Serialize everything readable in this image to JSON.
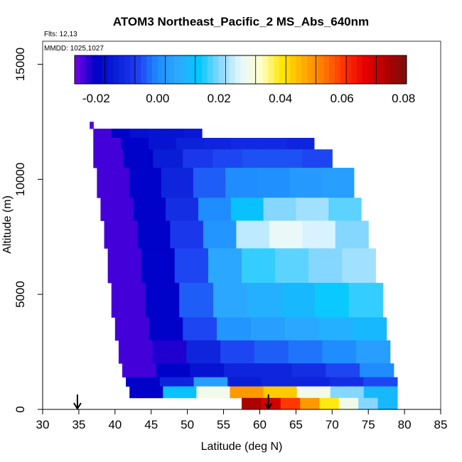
{
  "title": "ATOM3 Northeast_Pacific_2 MS_Abs_640nm",
  "flights_label": "Flts: 12,13",
  "mmdd_label": "MMDD: 1025,1027",
  "chart_data": {
    "type": "heatmap",
    "title": "ATOM3 Northeast_Pacific_2 MS_Abs_640nm",
    "xlabel": "Latitude (deg N)",
    "ylabel": "Altitude (m)",
    "xlim": [
      30,
      85
    ],
    "ylim": [
      0,
      16000
    ],
    "x_ticks": [
      "30",
      "35",
      "40",
      "45",
      "50",
      "55",
      "60",
      "65",
      "70",
      "75",
      "80",
      "85"
    ],
    "y_ticks": [
      "0",
      "5000",
      "10000",
      "15000"
    ],
    "colorbar": {
      "range": [
        -0.027,
        0.081
      ],
      "tick_values": [
        -0.02,
        0.0,
        0.02,
        0.04,
        0.06,
        0.08
      ],
      "tick_labels": [
        "-0.02",
        "0.00",
        "0.02",
        "0.04",
        "0.06",
        "0.08"
      ],
      "colors": [
        "#7a00e6",
        "#0000c8",
        "#0a1fd8",
        "#1e3cf0",
        "#1f8cff",
        "#2eaaff",
        "#00c8ff",
        "#8ad8ff",
        "#e6f8ff",
        "#ffffc8",
        "#ffe600",
        "#ffb000",
        "#ff7800",
        "#ff3000",
        "#e60000",
        "#b40000",
        "#781010"
      ]
    },
    "arrows_latitude": [
      34.8,
      61.2
    ],
    "bands": [
      {
        "alt_range": [
          12200,
          12500
        ],
        "lat_range": [
          36.5,
          37.0
        ],
        "values": [
          -0.025
        ]
      },
      {
        "alt_range": [
          11800,
          12200
        ],
        "lat_range": [
          37.0,
          52.0
        ],
        "values": [
          -0.024,
          -0.02,
          -0.017,
          -0.016,
          -0.016,
          -0.015
        ]
      },
      {
        "alt_range": [
          11300,
          11800
        ],
        "lat_range": [
          37.0,
          67.5
        ],
        "values": [
          -0.024,
          -0.02,
          -0.016,
          -0.013,
          -0.012,
          -0.011,
          -0.011,
          -0.012
        ]
      },
      {
        "alt_range": [
          10500,
          11300
        ],
        "lat_range": [
          37.0,
          70.0
        ],
        "values": [
          -0.024,
          -0.02,
          -0.014,
          -0.008,
          -0.006,
          -0.005,
          -0.005,
          -0.006
        ]
      },
      {
        "alt_range": [
          9200,
          10500
        ],
        "lat_range": [
          37.5,
          73.0
        ],
        "values": [
          -0.024,
          -0.02,
          -0.012,
          -0.004,
          0.0,
          0.001,
          0.003,
          0.004
        ]
      },
      {
        "alt_range": [
          8200,
          9200
        ],
        "lat_range": [
          38.0,
          74.0
        ],
        "values": [
          -0.024,
          -0.02,
          -0.01,
          0.0,
          0.012,
          0.02,
          0.022,
          0.018
        ]
      },
      {
        "alt_range": [
          7000,
          8200
        ],
        "lat_range": [
          38.5,
          75.0
        ],
        "values": [
          -0.024,
          -0.02,
          -0.008,
          0.002,
          0.024,
          0.028,
          0.026,
          0.02
        ]
      },
      {
        "alt_range": [
          5500,
          7000
        ],
        "lat_range": [
          39.0,
          76.0
        ],
        "values": [
          -0.024,
          -0.02,
          -0.006,
          0.006,
          0.016,
          0.018,
          0.02,
          0.022
        ]
      },
      {
        "alt_range": [
          4000,
          5500
        ],
        "lat_range": [
          39.5,
          77.0
        ],
        "values": [
          -0.024,
          -0.02,
          -0.004,
          0.006,
          0.008,
          0.01,
          0.014,
          0.016
        ]
      },
      {
        "alt_range": [
          3000,
          4000
        ],
        "lat_range": [
          40.0,
          77.5
        ],
        "values": [
          -0.024,
          -0.02,
          -0.006,
          0.002,
          0.004,
          0.006,
          0.008,
          0.01
        ]
      },
      {
        "alt_range": [
          2000,
          3000
        ],
        "lat_range": [
          40.5,
          78.0
        ],
        "values": [
          -0.024,
          -0.022,
          -0.012,
          -0.006,
          -0.004,
          -0.002,
          0.0,
          0.004
        ]
      },
      {
        "alt_range": [
          1400,
          2000
        ],
        "lat_range": [
          41.0,
          78.5
        ],
        "values": [
          -0.024,
          -0.02,
          -0.016,
          -0.012,
          -0.012,
          -0.01,
          -0.006,
          0.0
        ]
      },
      {
        "alt_range": [
          1000,
          1400
        ],
        "lat_range": [
          41.5,
          79.0
        ],
        "values": [
          -0.02,
          -0.012,
          0.004,
          -0.014,
          -0.012,
          -0.012,
          -0.01,
          -0.006
        ]
      },
      {
        "alt_range": [
          500,
          1000
        ],
        "lat_range": [
          42.0,
          79.0
        ],
        "values": [
          -0.02,
          0.012,
          0.03,
          0.05,
          0.044,
          0.03,
          0.02,
          0.01
        ]
      },
      {
        "alt_range": [
          0,
          500
        ],
        "lat_range": [
          57.5,
          79.0
        ],
        "values": [
          0.075,
          0.07,
          0.06,
          0.05,
          0.04,
          0.03,
          0.02,
          0.01
        ]
      }
    ]
  }
}
